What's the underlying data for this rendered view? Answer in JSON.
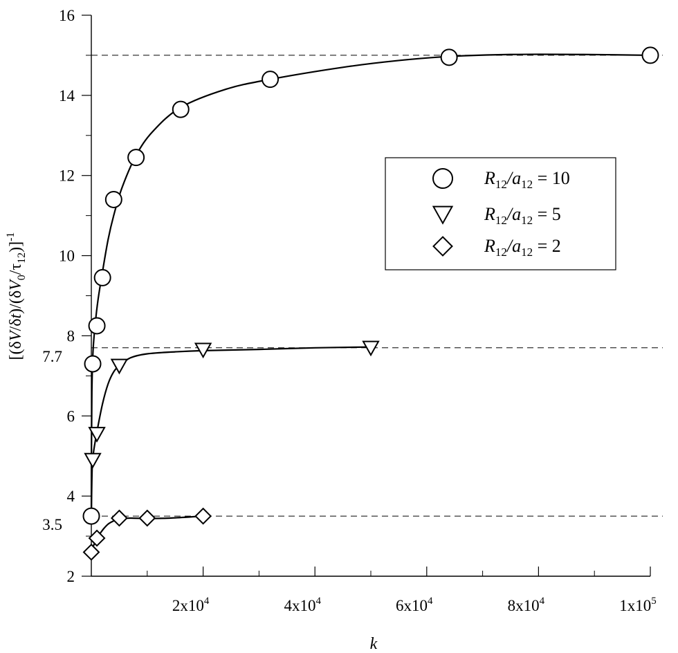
{
  "chart_data": {
    "type": "scatter",
    "title": "",
    "xlabel": "k",
    "ylabel_parts": {
      "open": "[(δ",
      "v1": "V",
      "mid1": "/δ",
      "t": "t",
      "mid2": ")/(δ",
      "v2": "V",
      "sub0": "0",
      "mid3": "/τ",
      "sub12": "12",
      "close": ")]",
      "sup": "-1"
    },
    "xlim": [
      0,
      100000
    ],
    "ylim": [
      2,
      16
    ],
    "x_ticks": [
      {
        "value": 20000,
        "mantissa": "2x10",
        "exp": "4"
      },
      {
        "value": 40000,
        "mantissa": "4x10",
        "exp": "4"
      },
      {
        "value": 60000,
        "mantissa": "6x10",
        "exp": "4"
      },
      {
        "value": 80000,
        "mantissa": "8x10",
        "exp": "4"
      },
      {
        "value": 100000,
        "mantissa": "1x10",
        "exp": "5"
      }
    ],
    "x_minor_ticks": [
      10000,
      30000,
      50000,
      70000,
      90000
    ],
    "y_ticks": [
      2,
      4,
      6,
      8,
      10,
      12,
      14,
      16
    ],
    "y_minor_ticks": [
      3,
      5,
      7,
      9,
      11,
      13,
      15
    ],
    "y_extra_labels": [
      {
        "value": 7.7,
        "label": "7.7"
      },
      {
        "value": 3.5,
        "label": "3.5"
      }
    ],
    "reference_lines": [
      15,
      7.7,
      3.5
    ],
    "grid": false,
    "legend_position": "center-right",
    "series": [
      {
        "name": "R12/a12 = 10",
        "legend": {
          "R": "R",
          "sub1": "12",
          "slash": "/",
          "a": "a",
          "sub2": "12",
          "eq": " = 10"
        },
        "marker": "circle",
        "points": [
          [
            0,
            3.5
          ],
          [
            250,
            7.3
          ],
          [
            1000,
            8.25
          ],
          [
            2000,
            9.45
          ],
          [
            4000,
            11.4
          ],
          [
            8000,
            12.45
          ],
          [
            16000,
            13.65
          ],
          [
            32000,
            14.4
          ],
          [
            64000,
            14.95
          ],
          [
            100000,
            15.0
          ]
        ],
        "curve": [
          [
            0,
            3.5
          ],
          [
            30,
            5.2
          ],
          [
            100,
            6.6
          ],
          [
            300,
            7.6
          ],
          [
            700,
            8.3
          ],
          [
            1200,
            8.9
          ],
          [
            2000,
            9.6
          ],
          [
            3000,
            10.4
          ],
          [
            4000,
            11.0
          ],
          [
            5500,
            11.7
          ],
          [
            8000,
            12.5
          ],
          [
            11000,
            13.1
          ],
          [
            16000,
            13.7
          ],
          [
            24000,
            14.15
          ],
          [
            32000,
            14.4
          ],
          [
            45000,
            14.7
          ],
          [
            55000,
            14.87
          ],
          [
            64000,
            14.97
          ],
          [
            75000,
            15.02
          ],
          [
            88000,
            15.02
          ],
          [
            100000,
            15.0
          ]
        ]
      },
      {
        "name": "R12/a12 = 5",
        "legend": {
          "R": "R",
          "sub1": "12",
          "slash": "/",
          "a": "a",
          "sub2": "12",
          "eq": " = 5"
        },
        "marker": "triangle-down",
        "points": [
          [
            250,
            4.9
          ],
          [
            1000,
            5.55
          ],
          [
            5000,
            7.25
          ],
          [
            20000,
            7.65
          ],
          [
            50000,
            7.7
          ]
        ],
        "curve": [
          [
            0,
            3.5
          ],
          [
            150,
            4.7
          ],
          [
            400,
            5.1
          ],
          [
            1000,
            5.6
          ],
          [
            2000,
            6.3
          ],
          [
            3000,
            6.8
          ],
          [
            4000,
            7.1
          ],
          [
            5000,
            7.25
          ],
          [
            7000,
            7.45
          ],
          [
            10000,
            7.55
          ],
          [
            15000,
            7.6
          ],
          [
            20000,
            7.63
          ],
          [
            30000,
            7.66
          ],
          [
            40000,
            7.7
          ],
          [
            50000,
            7.72
          ]
        ]
      },
      {
        "name": "R12/a12 = 2",
        "legend": {
          "R": "R",
          "sub1": "12",
          "slash": "/",
          "a": "a",
          "sub2": "12",
          "eq": " = 2"
        },
        "marker": "diamond",
        "points": [
          [
            0,
            2.6
          ],
          [
            1000,
            2.95
          ],
          [
            5000,
            3.45
          ],
          [
            10000,
            3.45
          ],
          [
            20000,
            3.5
          ]
        ],
        "curve": [
          [
            0,
            2.6
          ],
          [
            500,
            2.8
          ],
          [
            1000,
            2.95
          ],
          [
            2000,
            3.15
          ],
          [
            3000,
            3.3
          ],
          [
            4000,
            3.38
          ],
          [
            5000,
            3.43
          ],
          [
            7000,
            3.45
          ],
          [
            10000,
            3.44
          ],
          [
            14000,
            3.45
          ],
          [
            20000,
            3.5
          ]
        ]
      }
    ]
  }
}
